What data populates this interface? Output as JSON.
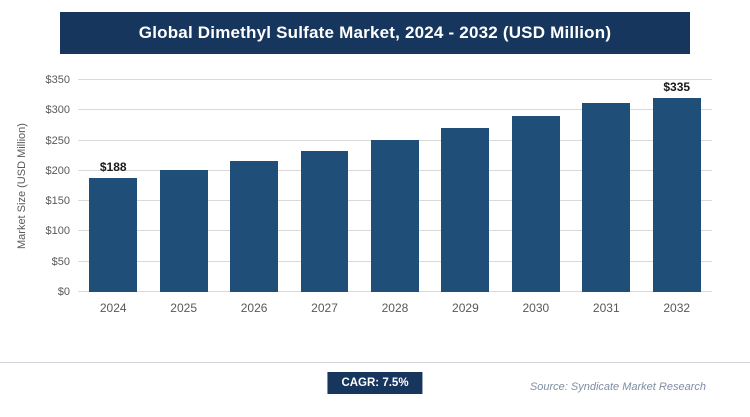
{
  "title": "Global Dimethyl Sulfate Market, 2024 - 2032 (USD Million)",
  "colors": {
    "title_bar": "#17365d",
    "bar": "#1f4e79",
    "gridline": "#d9d9d9",
    "axis_text": "#595959",
    "source_text": "#7f8ea3"
  },
  "chart_data": {
    "type": "bar",
    "title": "Global Dimethyl Sulfate Market, 2024 - 2032 (USD Million)",
    "categories": [
      "2024",
      "2025",
      "2026",
      "2027",
      "2028",
      "2029",
      "2030",
      "2031",
      "2032"
    ],
    "values": [
      188,
      202,
      217,
      233,
      251,
      270,
      290,
      312,
      335
    ],
    "xlabel": "",
    "ylabel": "Market Size (USD Million)",
    "ylim": [
      0,
      350
    ],
    "ytick_step": 50,
    "ytick_labels": [
      "$0",
      "$50",
      "$100",
      "$150",
      "$200",
      "$250",
      "$300",
      "$350"
    ],
    "grid": true,
    "legend": "none",
    "point_labels": [
      {
        "index": 0,
        "text": "$188"
      },
      {
        "index": 8,
        "text": "$335"
      }
    ]
  },
  "footer": {
    "cagr_label": "CAGR: 7.5%",
    "source": "Source: Syndicate Market Research"
  }
}
